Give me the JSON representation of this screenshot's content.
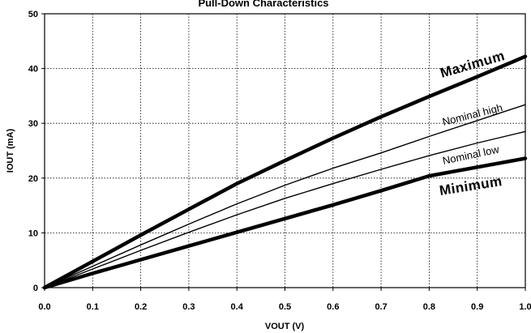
{
  "chart_data": {
    "type": "line",
    "title": "Pull-Down Characteristics",
    "xlabel": "VOUT (V)",
    "ylabel": "IOUT (mA)",
    "xlim": [
      0.0,
      1.0
    ],
    "ylim": [
      0,
      50
    ],
    "x_ticks": [
      "0.0",
      "0.1",
      "0.2",
      "0.3",
      "0.4",
      "0.5",
      "0.6",
      "0.7",
      "0.8",
      "0.9",
      "1.0"
    ],
    "y_ticks": [
      "0",
      "10",
      "20",
      "30",
      "40",
      "50"
    ],
    "grid": true,
    "series": [
      {
        "name": "Maximum",
        "style": "bold",
        "x": [
          0.0,
          0.1,
          0.2,
          0.3,
          0.4,
          0.5,
          0.6,
          0.7,
          0.8,
          0.9,
          1.0
        ],
        "y": [
          0,
          4.8,
          9.6,
          14.3,
          19.0,
          23.2,
          27.3,
          31.2,
          34.9,
          38.5,
          42.2
        ]
      },
      {
        "name": "Nominal high",
        "style": "thin",
        "x": [
          0.0,
          0.1,
          0.2,
          0.3,
          0.4,
          0.5,
          0.6,
          0.7,
          0.8,
          0.9,
          1.0
        ],
        "y": [
          0,
          3.9,
          7.8,
          11.6,
          15.3,
          18.7,
          21.8,
          24.6,
          27.6,
          30.5,
          33.4
        ]
      },
      {
        "name": "Nominal low",
        "style": "thin",
        "x": [
          0.0,
          0.1,
          0.2,
          0.3,
          0.4,
          0.5,
          0.6,
          0.7,
          0.8,
          0.9,
          1.0
        ],
        "y": [
          0,
          3.4,
          6.8,
          10.1,
          13.3,
          16.3,
          19.0,
          21.6,
          24.1,
          26.4,
          28.5
        ]
      },
      {
        "name": "Minimum",
        "style": "bold",
        "x": [
          0.0,
          0.1,
          0.2,
          0.3,
          0.4,
          0.5,
          0.6,
          0.7,
          0.8,
          0.9,
          1.0
        ],
        "y": [
          0,
          2.6,
          5.1,
          7.6,
          10.1,
          12.6,
          15.1,
          17.7,
          20.4,
          22.0,
          23.6
        ]
      }
    ]
  }
}
